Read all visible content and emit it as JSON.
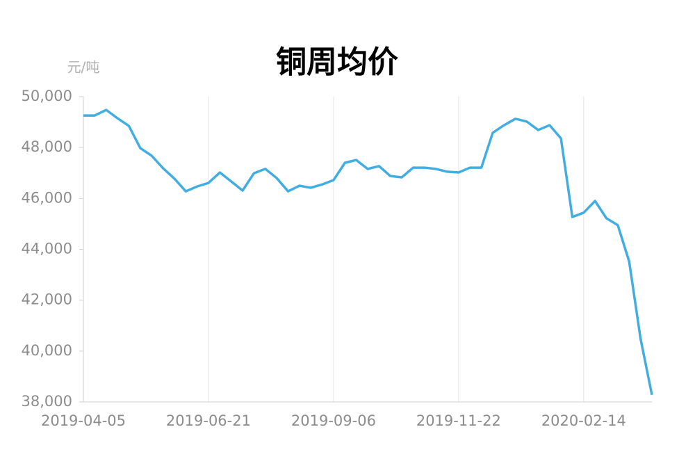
{
  "chart_data": {
    "type": "line",
    "title": "铜周均价",
    "y_axis_label": "元/吨",
    "categories": [
      "2019-04-05",
      null,
      null,
      null,
      null,
      null,
      null,
      null,
      null,
      null,
      null,
      "2019-06-21",
      null,
      null,
      null,
      null,
      null,
      null,
      null,
      null,
      null,
      null,
      "2019-09-06",
      null,
      null,
      null,
      null,
      null,
      null,
      null,
      null,
      null,
      null,
      "2019-11-22",
      null,
      null,
      null,
      null,
      null,
      null,
      null,
      null,
      null,
      null,
      "2020-02-14",
      null,
      null,
      null,
      null,
      null,
      null
    ],
    "series": [
      {
        "name": "铜周均价",
        "color": "#41ade0",
        "values": [
          49260,
          49260,
          49480,
          49150,
          48850,
          47980,
          47680,
          47190,
          46780,
          46280,
          46470,
          46610,
          47020,
          46670,
          46310,
          46990,
          47160,
          46800,
          46280,
          46500,
          46420,
          46550,
          46720,
          47400,
          47510,
          47160,
          47270,
          46880,
          46830,
          47210,
          47210,
          47160,
          47050,
          47020,
          47210,
          47210,
          48580,
          48880,
          49130,
          49020,
          48690,
          48880,
          48360,
          45270,
          45440,
          45900,
          45220,
          44950,
          43520,
          40490,
          38280
        ]
      }
    ],
    "ylim": [
      38000,
      50000
    ],
    "yticks": [
      {
        "value": 38000,
        "label": "38,000"
      },
      {
        "value": 40000,
        "label": "40,000"
      },
      {
        "value": 42000,
        "label": "42,000"
      },
      {
        "value": 44000,
        "label": "44,000"
      },
      {
        "value": 46000,
        "label": "46,000"
      },
      {
        "value": 48000,
        "label": "48,000"
      },
      {
        "value": 50000,
        "label": "50,000"
      }
    ],
    "grid": true
  }
}
